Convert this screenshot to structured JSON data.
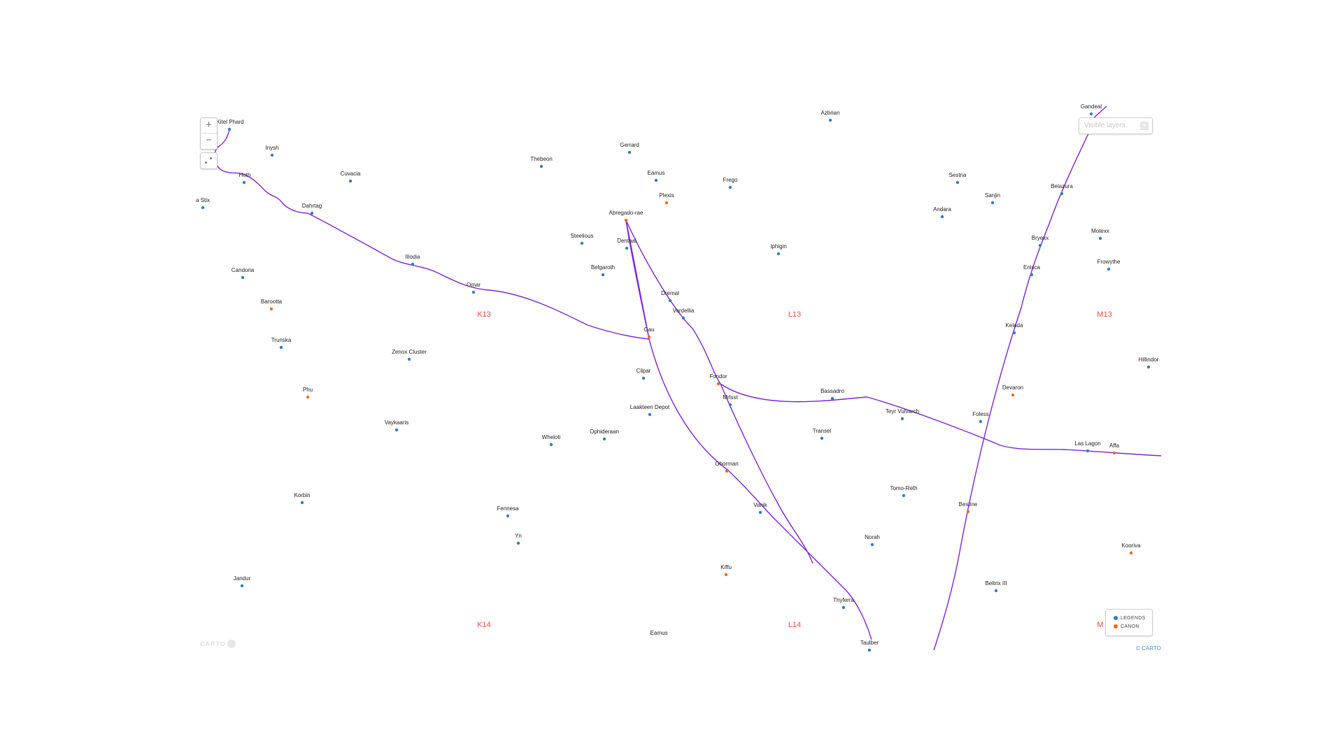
{
  "colors": {
    "route": "#7b25d6",
    "legends": "#2f7ccf",
    "canon": "#ef6a14",
    "grid_label": "#f04a3e"
  },
  "controls": {
    "zoom_in_label": "+",
    "zoom_out_label": "−",
    "locate_icon": "locate-icon",
    "layers_placeholder": "Visible layers",
    "layers_arrow_icon": "chevron-down-icon"
  },
  "legend": {
    "items": [
      {
        "label": "LEGENDS",
        "color": "#2f7ccf"
      },
      {
        "label": "CANON",
        "color": "#ef6a14"
      }
    ]
  },
  "attribution": "© CARTO",
  "carto_logo": "CARTO",
  "grid_labels": [
    "K13",
    "L13",
    "M13",
    "K14",
    "L14",
    "M"
  ],
  "systems": [
    {
      "name": "Kitel Phard",
      "layer": "legends"
    },
    {
      "name": "Inysh",
      "layer": "legends"
    },
    {
      "name": "Cuvacia",
      "layer": "legends"
    },
    {
      "name": "Thebeon",
      "layer": "legends"
    },
    {
      "name": "Gerrard",
      "layer": "legends"
    },
    {
      "name": "Eamus",
      "layer": "legends"
    },
    {
      "name": "Frego",
      "layer": "legends"
    },
    {
      "name": "Azbrian",
      "layer": "legends"
    },
    {
      "name": "Gandeal",
      "layer": "legends"
    },
    {
      "name": "Sestria",
      "layer": "legends"
    },
    {
      "name": "Sanjin",
      "layer": "legends"
    },
    {
      "name": "Belazura",
      "layer": "legends"
    },
    {
      "name": "Andara",
      "layer": "legends"
    },
    {
      "name": "Hoth",
      "layer": "legends"
    },
    {
      "name": "a Stix",
      "layer": "legends"
    },
    {
      "name": "Dahrtag",
      "layer": "legends"
    },
    {
      "name": "Plexis",
      "layer": "canon"
    },
    {
      "name": "Abregado-rae",
      "layer": "canon"
    },
    {
      "name": "Steelious",
      "layer": "legends"
    },
    {
      "name": "Dentaal",
      "layer": "legends"
    },
    {
      "name": "Iphigin",
      "layer": "legends"
    },
    {
      "name": "Bryexx",
      "layer": "legends"
    },
    {
      "name": "Motexx",
      "layer": "legends"
    },
    {
      "name": "Illodia",
      "layer": "legends"
    },
    {
      "name": "Belgaroth",
      "layer": "legends"
    },
    {
      "name": "Frowythe",
      "layer": "legends"
    },
    {
      "name": "Enisca",
      "layer": "legends"
    },
    {
      "name": "Candoria",
      "layer": "legends"
    },
    {
      "name": "Omar",
      "layer": "legends"
    },
    {
      "name": "Dremal",
      "layer": "legends"
    },
    {
      "name": "Barootta",
      "layer": "canon"
    },
    {
      "name": "Vordellia",
      "layer": "legends"
    },
    {
      "name": "Kelada",
      "layer": "legends"
    },
    {
      "name": "Gau",
      "layer": "canon"
    },
    {
      "name": "Trunska",
      "layer": "legends"
    },
    {
      "name": "Zenox Cluster",
      "layer": "legends"
    },
    {
      "name": "Hillindor",
      "layer": "legends"
    },
    {
      "name": "Cilpar",
      "layer": "legends"
    },
    {
      "name": "Fondor",
      "layer": "canon"
    },
    {
      "name": "Devaron",
      "layer": "canon"
    },
    {
      "name": "Phu",
      "layer": "canon"
    },
    {
      "name": "Bassadro",
      "layer": "legends"
    },
    {
      "name": "Mrlsst",
      "layer": "legends"
    },
    {
      "name": "Laakteen Depot",
      "layer": "legends"
    },
    {
      "name": "Teyr Vulvarch",
      "layer": "legends"
    },
    {
      "name": "Foless",
      "layer": "legends"
    },
    {
      "name": "Vaykaaris",
      "layer": "legends"
    },
    {
      "name": "Ophideraan",
      "layer": "legends"
    },
    {
      "name": "Transel",
      "layer": "legends"
    },
    {
      "name": "Wheloti",
      "layer": "legends"
    },
    {
      "name": "Las Lagon",
      "layer": "legends"
    },
    {
      "name": "Affa",
      "layer": "canon"
    },
    {
      "name": "Ghorman",
      "layer": "canon"
    },
    {
      "name": "Tomo-Reth",
      "layer": "legends"
    },
    {
      "name": "Korbin",
      "layer": "legends"
    },
    {
      "name": "Bestine",
      "layer": "canon"
    },
    {
      "name": "Vanik",
      "layer": "legends"
    },
    {
      "name": "Fennesa",
      "layer": "legends"
    },
    {
      "name": "Yn",
      "layer": "legends"
    },
    {
      "name": "Norah",
      "layer": "legends"
    },
    {
      "name": "Kooriva",
      "layer": "canon"
    },
    {
      "name": "Kiffu",
      "layer": "canon"
    },
    {
      "name": "Jandur",
      "layer": "legends"
    },
    {
      "name": "Beltrix III",
      "layer": "legends"
    },
    {
      "name": "Thyferra",
      "layer": "legends"
    },
    {
      "name": "Eamus",
      "layer": "none"
    },
    {
      "name": "Taulber",
      "layer": "legends"
    }
  ]
}
